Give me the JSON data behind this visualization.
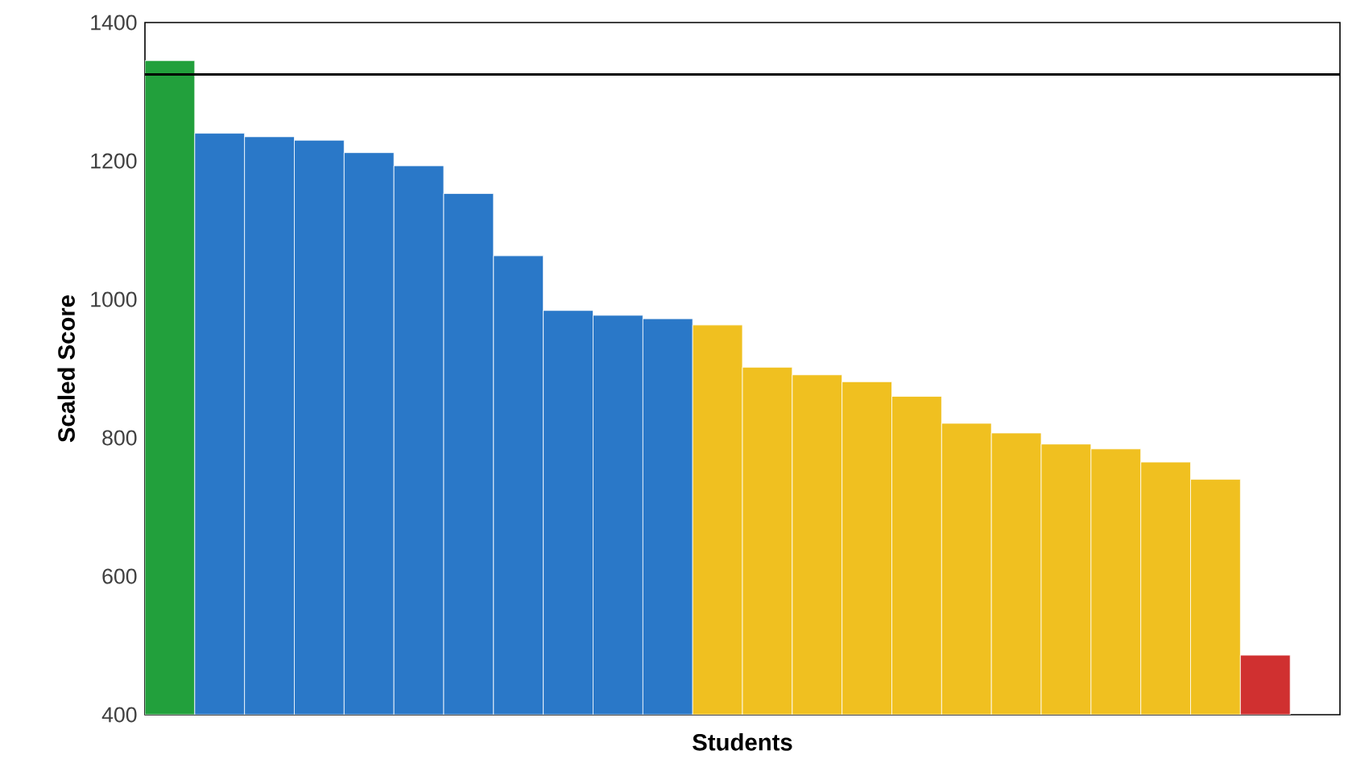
{
  "chart_data": {
    "type": "bar",
    "xlabel": "Students",
    "ylabel": "Scaled Score",
    "categories": [
      null,
      null,
      null,
      null,
      null,
      null,
      null,
      null,
      null,
      null,
      null,
      null,
      null,
      null,
      null,
      null,
      null,
      null,
      null,
      null,
      null,
      null,
      null,
      null
    ],
    "values": [
      1345,
      1240,
      1235,
      1230,
      1212,
      1193,
      1153,
      1063,
      984,
      977,
      972,
      963,
      902,
      891,
      881,
      860,
      821,
      807,
      791,
      784,
      765,
      740,
      486,
      null
    ],
    "colors": [
      "#22a03c",
      "#2a78c8",
      "#2a78c8",
      "#2a78c8",
      "#2a78c8",
      "#2a78c8",
      "#2a78c8",
      "#2a78c8",
      "#2a78c8",
      "#2a78c8",
      "#2a78c8",
      "#f0c020",
      "#f0c020",
      "#f0c020",
      "#f0c020",
      "#f0c020",
      "#f0c020",
      "#f0c020",
      "#f0c020",
      "#f0c020",
      "#f0c020",
      "#f0c020",
      "#d03030",
      "#d03030"
    ],
    "ylim": [
      400,
      1400
    ],
    "yticks": [
      400,
      600,
      800,
      1000,
      1200,
      1400
    ],
    "ref_lines": [
      {
        "axis": "y",
        "value": 1325,
        "color": "#000000"
      }
    ],
    "tick_labels": "y"
  }
}
